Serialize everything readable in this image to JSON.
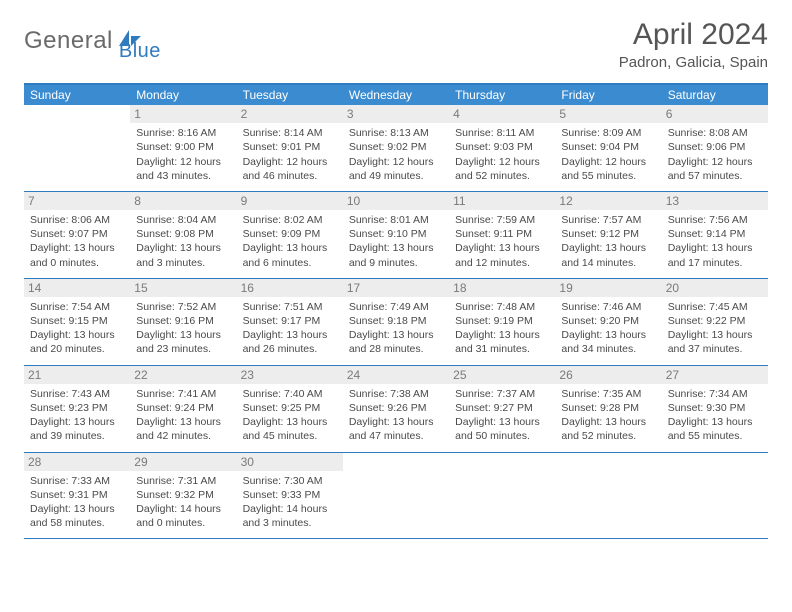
{
  "logo": {
    "text1": "General",
    "text2": "Blue"
  },
  "title": "April 2024",
  "location": "Padron, Galicia, Spain",
  "colors": {
    "accent": "#3b8bd0",
    "border": "#2f7bbf",
    "text": "#4a4a4a",
    "daybg": "#ededed"
  },
  "day_names": [
    "Sunday",
    "Monday",
    "Tuesday",
    "Wednesday",
    "Thursday",
    "Friday",
    "Saturday"
  ],
  "first_weekday_offset": 1,
  "days": [
    {
      "n": 1,
      "sr": "8:16 AM",
      "ss": "9:00 PM",
      "dl": "12 hours and 43 minutes."
    },
    {
      "n": 2,
      "sr": "8:14 AM",
      "ss": "9:01 PM",
      "dl": "12 hours and 46 minutes."
    },
    {
      "n": 3,
      "sr": "8:13 AM",
      "ss": "9:02 PM",
      "dl": "12 hours and 49 minutes."
    },
    {
      "n": 4,
      "sr": "8:11 AM",
      "ss": "9:03 PM",
      "dl": "12 hours and 52 minutes."
    },
    {
      "n": 5,
      "sr": "8:09 AM",
      "ss": "9:04 PM",
      "dl": "12 hours and 55 minutes."
    },
    {
      "n": 6,
      "sr": "8:08 AM",
      "ss": "9:06 PM",
      "dl": "12 hours and 57 minutes."
    },
    {
      "n": 7,
      "sr": "8:06 AM",
      "ss": "9:07 PM",
      "dl": "13 hours and 0 minutes."
    },
    {
      "n": 8,
      "sr": "8:04 AM",
      "ss": "9:08 PM",
      "dl": "13 hours and 3 minutes."
    },
    {
      "n": 9,
      "sr": "8:02 AM",
      "ss": "9:09 PM",
      "dl": "13 hours and 6 minutes."
    },
    {
      "n": 10,
      "sr": "8:01 AM",
      "ss": "9:10 PM",
      "dl": "13 hours and 9 minutes."
    },
    {
      "n": 11,
      "sr": "7:59 AM",
      "ss": "9:11 PM",
      "dl": "13 hours and 12 minutes."
    },
    {
      "n": 12,
      "sr": "7:57 AM",
      "ss": "9:12 PM",
      "dl": "13 hours and 14 minutes."
    },
    {
      "n": 13,
      "sr": "7:56 AM",
      "ss": "9:14 PM",
      "dl": "13 hours and 17 minutes."
    },
    {
      "n": 14,
      "sr": "7:54 AM",
      "ss": "9:15 PM",
      "dl": "13 hours and 20 minutes."
    },
    {
      "n": 15,
      "sr": "7:52 AM",
      "ss": "9:16 PM",
      "dl": "13 hours and 23 minutes."
    },
    {
      "n": 16,
      "sr": "7:51 AM",
      "ss": "9:17 PM",
      "dl": "13 hours and 26 minutes."
    },
    {
      "n": 17,
      "sr": "7:49 AM",
      "ss": "9:18 PM",
      "dl": "13 hours and 28 minutes."
    },
    {
      "n": 18,
      "sr": "7:48 AM",
      "ss": "9:19 PM",
      "dl": "13 hours and 31 minutes."
    },
    {
      "n": 19,
      "sr": "7:46 AM",
      "ss": "9:20 PM",
      "dl": "13 hours and 34 minutes."
    },
    {
      "n": 20,
      "sr": "7:45 AM",
      "ss": "9:22 PM",
      "dl": "13 hours and 37 minutes."
    },
    {
      "n": 21,
      "sr": "7:43 AM",
      "ss": "9:23 PM",
      "dl": "13 hours and 39 minutes."
    },
    {
      "n": 22,
      "sr": "7:41 AM",
      "ss": "9:24 PM",
      "dl": "13 hours and 42 minutes."
    },
    {
      "n": 23,
      "sr": "7:40 AM",
      "ss": "9:25 PM",
      "dl": "13 hours and 45 minutes."
    },
    {
      "n": 24,
      "sr": "7:38 AM",
      "ss": "9:26 PM",
      "dl": "13 hours and 47 minutes."
    },
    {
      "n": 25,
      "sr": "7:37 AM",
      "ss": "9:27 PM",
      "dl": "13 hours and 50 minutes."
    },
    {
      "n": 26,
      "sr": "7:35 AM",
      "ss": "9:28 PM",
      "dl": "13 hours and 52 minutes."
    },
    {
      "n": 27,
      "sr": "7:34 AM",
      "ss": "9:30 PM",
      "dl": "13 hours and 55 minutes."
    },
    {
      "n": 28,
      "sr": "7:33 AM",
      "ss": "9:31 PM",
      "dl": "13 hours and 58 minutes."
    },
    {
      "n": 29,
      "sr": "7:31 AM",
      "ss": "9:32 PM",
      "dl": "14 hours and 0 minutes."
    },
    {
      "n": 30,
      "sr": "7:30 AM",
      "ss": "9:33 PM",
      "dl": "14 hours and 3 minutes."
    }
  ],
  "labels": {
    "sunrise": "Sunrise:",
    "sunset": "Sunset:",
    "daylight": "Daylight:"
  }
}
